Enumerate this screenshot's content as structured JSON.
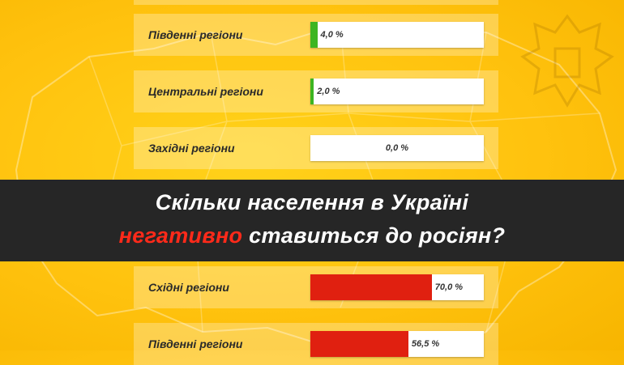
{
  "colors": {
    "background": "#ffc20e",
    "positive": "#3cb521",
    "negative": "#e02010",
    "banner": "#262626",
    "highlight_text": "#ff2a1a"
  },
  "banner": {
    "line1": "Скільки населення в Україні",
    "highlight": "негативно",
    "line2_rest": " ставиться до росіян?"
  },
  "chart_data": [
    {
      "type": "bar",
      "orientation": "horizontal",
      "categories": [
        "Південні регіони",
        "Центральні регіони",
        "Західні регіони"
      ],
      "values": [
        4.0,
        2.0,
        0.0
      ],
      "labels": [
        "4,0 %",
        "2,0 %",
        "0,0 %"
      ],
      "xlim": [
        0,
        100
      ],
      "color": "#3cb521"
    },
    {
      "type": "bar",
      "orientation": "horizontal",
      "categories": [
        "Східні регіони",
        "Південні регіони"
      ],
      "values": [
        70.0,
        56.5
      ],
      "labels": [
        "70,0 %",
        "56,5 %"
      ],
      "xlim": [
        0,
        100
      ],
      "color": "#e02010"
    }
  ]
}
